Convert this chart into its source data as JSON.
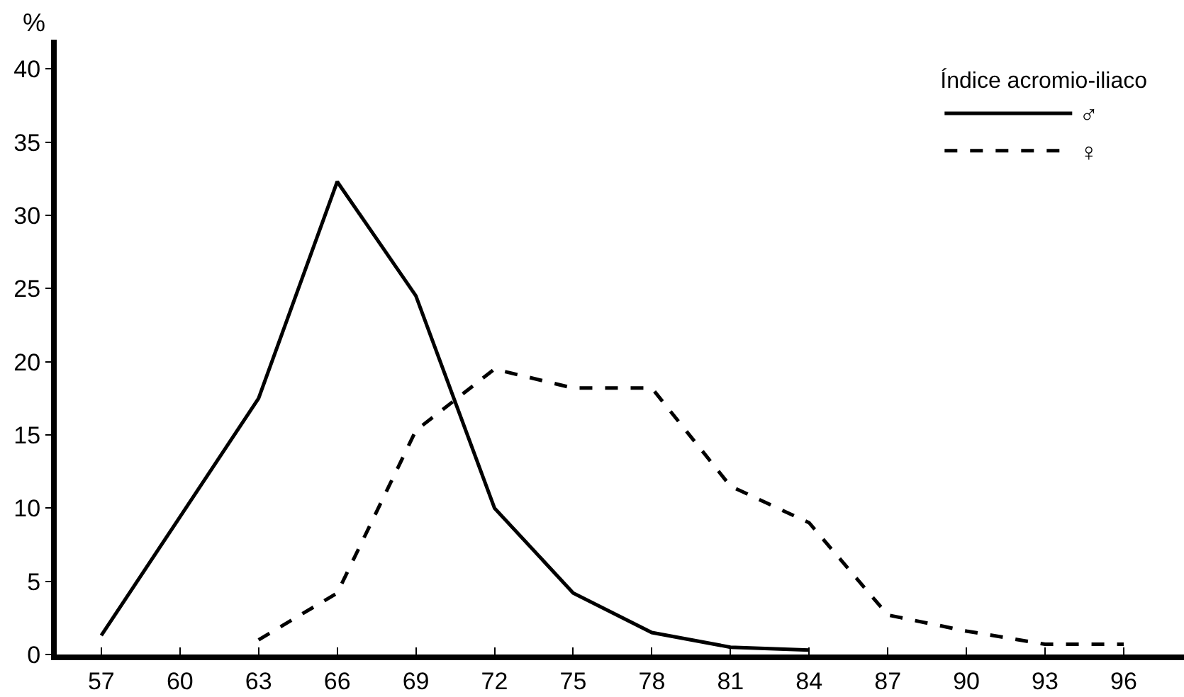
{
  "chart_data": {
    "type": "line",
    "ylabel": "%",
    "legend_title": "Índice acromio-iliaco",
    "legend": "top right",
    "grid": false,
    "marker": "none",
    "xlim": [
      55.3,
      98.3
    ],
    "xticks": [
      57,
      60,
      63,
      66,
      69,
      72,
      75,
      78,
      81,
      84,
      87,
      90,
      93,
      96
    ],
    "ylim": [
      0,
      42
    ],
    "yticks": [
      0,
      5,
      10,
      15,
      20,
      25,
      30,
      35,
      40
    ],
    "series": [
      {
        "name": "♂",
        "color": "#000000",
        "line_style": "solid",
        "x": [
          57,
          63,
          66,
          69,
          72,
          75,
          78,
          81,
          84
        ],
        "values": [
          1.3,
          17.5,
          32.3,
          24.5,
          10,
          4.2,
          1.5,
          0.5,
          0.3
        ]
      },
      {
        "name": "♀",
        "color": "#000000",
        "line_style": "dashed",
        "x": [
          63,
          66,
          69,
          72,
          75,
          78,
          81,
          84,
          87,
          90,
          93,
          96
        ],
        "values": [
          1,
          4.2,
          15.3,
          19.5,
          18.2,
          18.2,
          11.5,
          9,
          2.7,
          1.6,
          0.7,
          0.7
        ]
      }
    ]
  }
}
